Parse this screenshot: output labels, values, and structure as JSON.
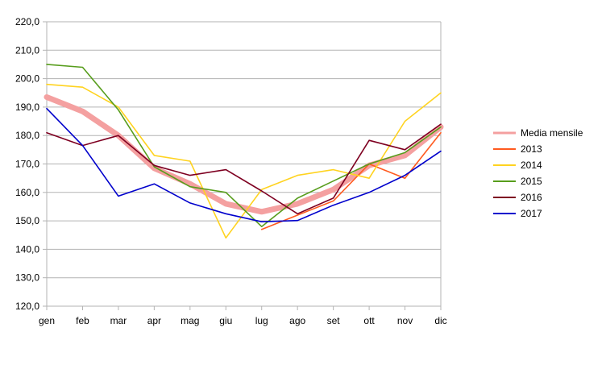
{
  "chart_data": {
    "type": "line",
    "categories": [
      "gen",
      "feb",
      "mar",
      "apr",
      "mag",
      "giu",
      "lug",
      "ago",
      "set",
      "ott",
      "nov",
      "dic"
    ],
    "ylim": [
      120,
      220
    ],
    "yticks": [
      "120,0",
      "130,0",
      "140,0",
      "150,0",
      "160,0",
      "170,0",
      "180,0",
      "190,0",
      "200,0",
      "210,0",
      "220,0"
    ],
    "grid": "horizontal",
    "legend_position": "right",
    "title": "",
    "xlabel": "",
    "ylabel": "",
    "series": [
      {
        "name": "Media mensile",
        "color": "#f4a0a0",
        "emphasis": true,
        "values": [
          193.5,
          188.5,
          180,
          168.5,
          163,
          156,
          153.2,
          156,
          161,
          169.5,
          173,
          183
        ]
      },
      {
        "name": "2013",
        "color": "#ff5a1f",
        "emphasis": false,
        "values": [
          null,
          null,
          null,
          null,
          null,
          null,
          147,
          152,
          157,
          170,
          165,
          181
        ]
      },
      {
        "name": "2014",
        "color": "#ffd320",
        "emphasis": false,
        "values": [
          198,
          197,
          190,
          173,
          171,
          144,
          161,
          166,
          168,
          165,
          185,
          195
        ]
      },
      {
        "name": "2015",
        "color": "#579d1c",
        "emphasis": false,
        "values": [
          205,
          204,
          189,
          169,
          162,
          160,
          148,
          158,
          164,
          170,
          174,
          183
        ]
      },
      {
        "name": "2016",
        "color": "#7e0021",
        "emphasis": false,
        "values": [
          181,
          176.5,
          180,
          169.5,
          166,
          168,
          160.5,
          152.5,
          158,
          178.3,
          175,
          184
        ]
      },
      {
        "name": "2017",
        "color": "#0000cc",
        "emphasis": false,
        "values": [
          189.5,
          176.5,
          158.7,
          163,
          156.3,
          152.5,
          149.7,
          150.1,
          155.5,
          160,
          166,
          174.5
        ]
      }
    ]
  }
}
